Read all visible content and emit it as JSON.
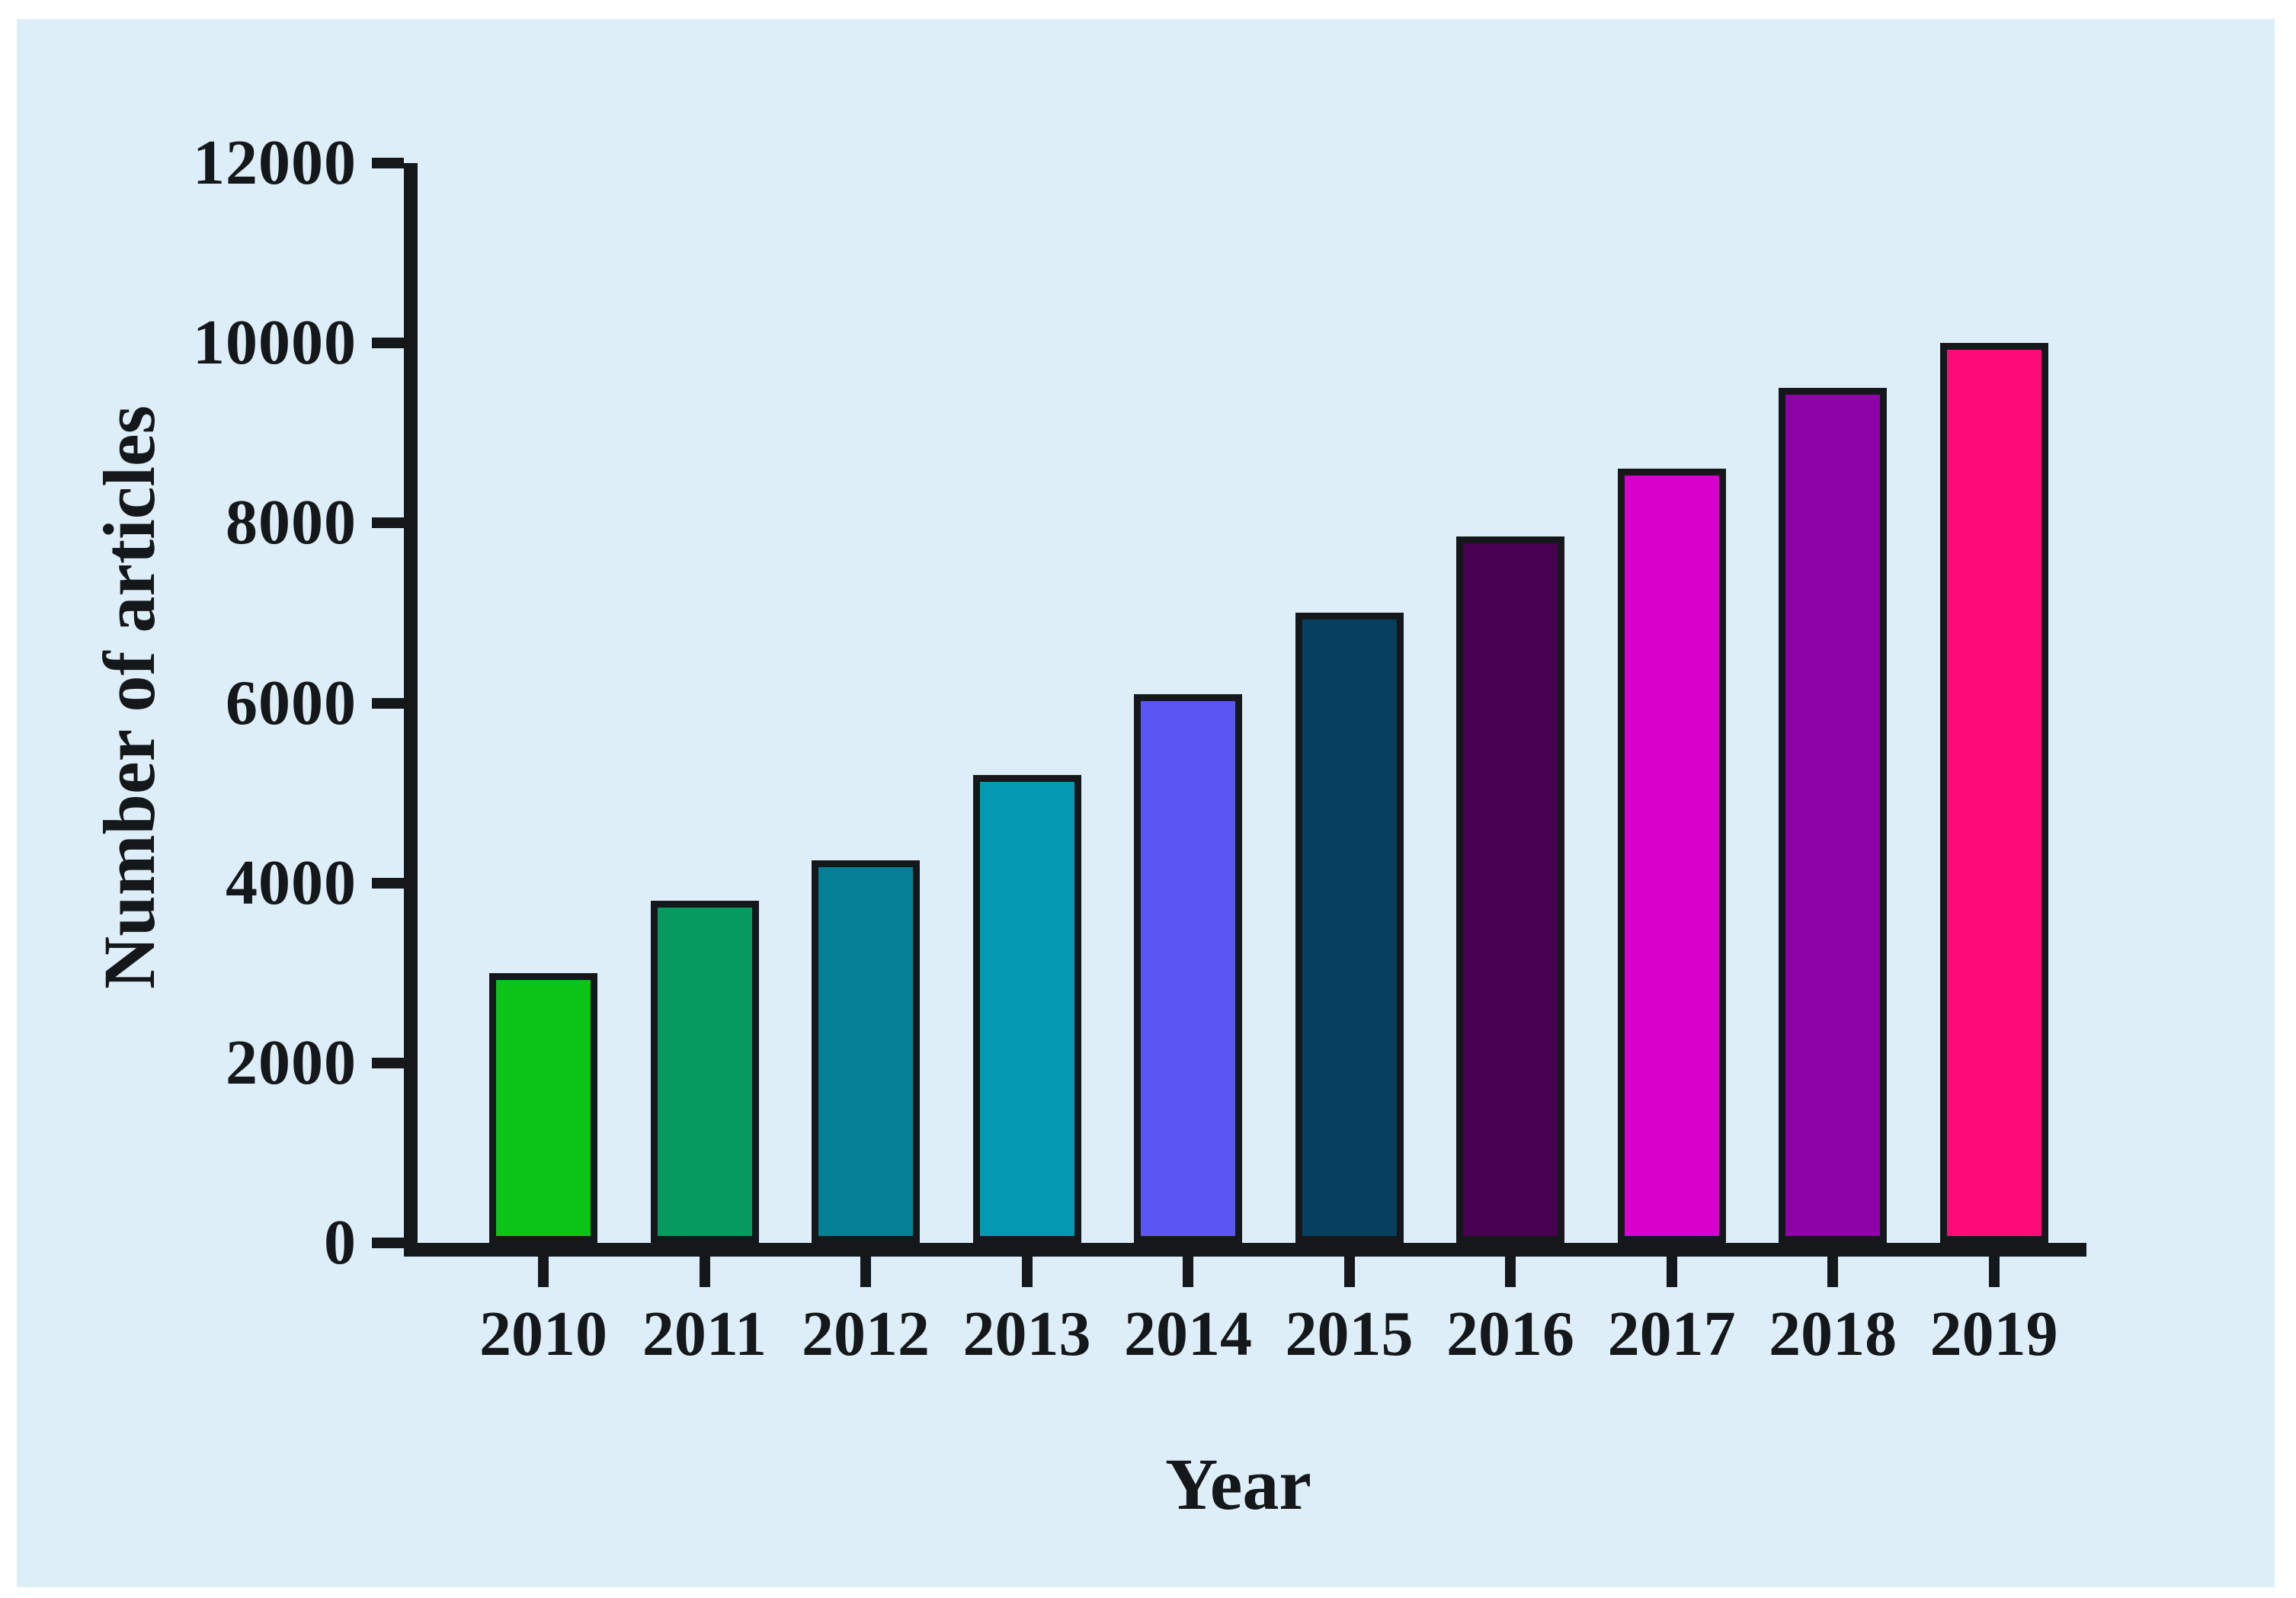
{
  "figure": {
    "background_color": "#ffffff",
    "panel_color": "#ddeef8",
    "ink_color": "#15181b"
  },
  "chart_data": {
    "type": "bar",
    "title": "",
    "categories": [
      "2010",
      "2011",
      "2012",
      "2013",
      "2014",
      "2015",
      "2016",
      "2017",
      "2018",
      "2019"
    ],
    "values": [
      3000,
      3800,
      4250,
      5200,
      6100,
      7000,
      7850,
      8600,
      9500,
      10000
    ],
    "bar_colors": [
      "#0cc417",
      "#079a60",
      "#047f95",
      "#0399b2",
      "#5b55f3",
      "#07405f",
      "#470150",
      "#da00cc",
      "#8d03a7",
      "#fd0c77"
    ],
    "bar_outline_color": "#15181b",
    "xlabel": "Year",
    "ylabel": "Number of articles",
    "ylim": [
      0,
      12000
    ],
    "yticks": [
      0,
      2000,
      4000,
      6000,
      8000,
      10000,
      12000
    ],
    "grid": false,
    "legend": false
  }
}
